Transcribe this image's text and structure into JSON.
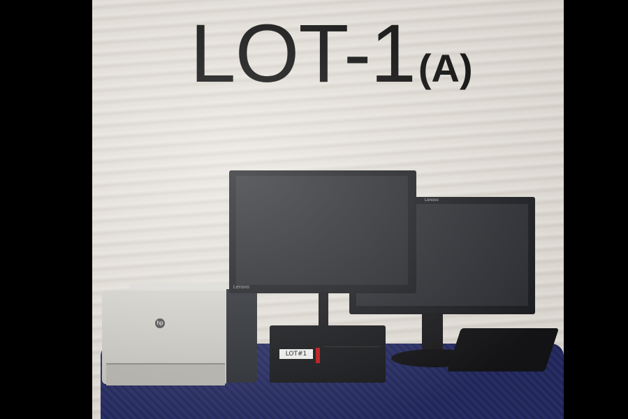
{
  "title": {
    "main": "LOT-1",
    "sub": "(A)"
  },
  "labels": {
    "pc_tag": "LOT#1",
    "monitor_brand": "Lenovo"
  },
  "colors": {
    "backdrop": "#e7e2db",
    "table_cloth": "#252a60",
    "device_black": "#1d1e22"
  }
}
